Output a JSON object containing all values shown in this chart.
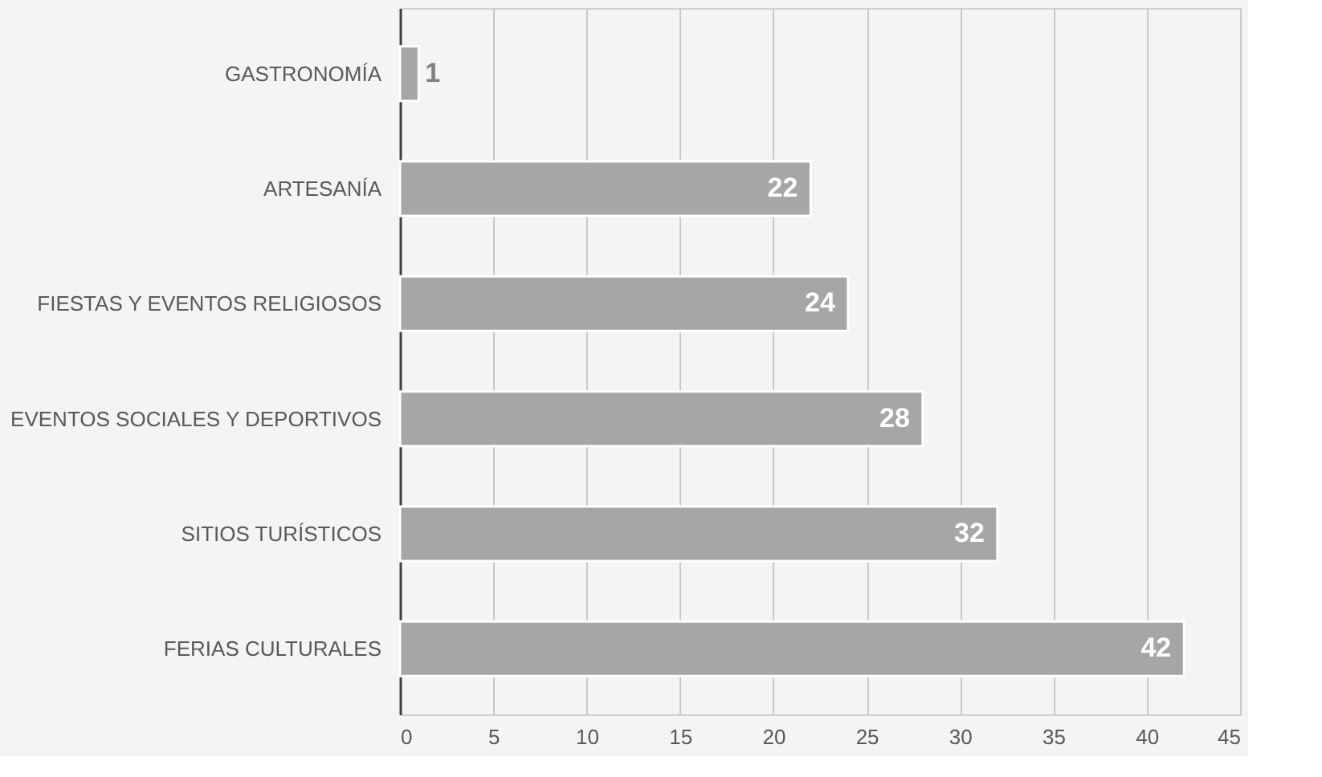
{
  "chart_data": {
    "type": "bar",
    "orientation": "horizontal",
    "categories": [
      "GASTRONOMÍA",
      "ARTESANÍA",
      "FIESTAS Y EVENTOS RELIGIOSOS",
      "EVENTOS SOCIALES Y DEPORTIVOS",
      "SITIOS TURÍSTICOS",
      "FERIAS CULTURALES"
    ],
    "values": [
      1,
      22,
      24,
      28,
      32,
      42
    ],
    "color": "#a6a6a6",
    "xlim": [
      0,
      45
    ],
    "xticks": [
      0,
      5,
      10,
      15,
      20,
      25,
      30,
      35,
      40,
      45
    ],
    "grid": "x",
    "data_labels": true
  }
}
